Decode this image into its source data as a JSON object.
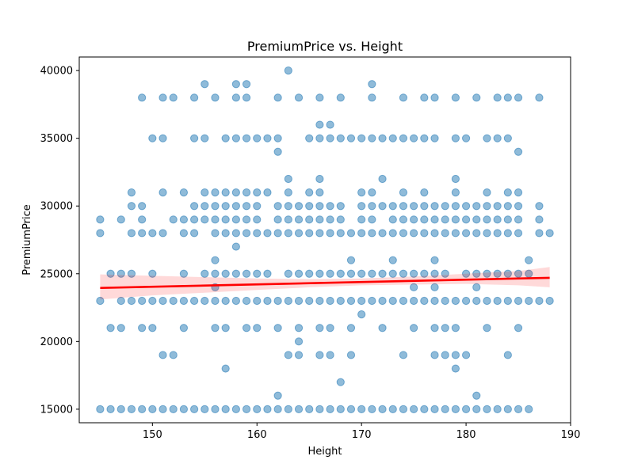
{
  "chart_data": {
    "type": "scatter",
    "title": "PremiumPrice vs. Height",
    "xlabel": "Height",
    "ylabel": "PremiumPrice",
    "xlim": [
      143,
      190
    ],
    "ylim": [
      14000,
      41000
    ],
    "xticks": [
      150,
      160,
      170,
      180,
      190
    ],
    "yticks": [
      15000,
      20000,
      25000,
      30000,
      35000,
      40000
    ],
    "grid": false,
    "point_color": "#1f77b4",
    "regression_color": "#ff0000",
    "confidence_band_color": "#ff0000",
    "regression_line": {
      "x": [
        145,
        188
      ],
      "y": [
        23950,
        24700
      ]
    },
    "confidence_band": {
      "x": [
        145,
        150,
        155,
        160,
        165,
        170,
        175,
        180,
        185,
        188
      ],
      "lower": [
        23100,
        23400,
        23600,
        23800,
        24000,
        24150,
        24200,
        24250,
        24150,
        24000
      ],
      "upper": [
        24950,
        24850,
        24750,
        24650,
        24600,
        24650,
        24800,
        25000,
        25200,
        25500
      ]
    },
    "points": [
      [
        163,
        40000
      ],
      [
        155,
        39000
      ],
      [
        158,
        39000
      ],
      [
        159,
        39000
      ],
      [
        171,
        39000
      ],
      [
        149,
        38000
      ],
      [
        151,
        38000
      ],
      [
        152,
        38000
      ],
      [
        154,
        38000
      ],
      [
        156,
        38000
      ],
      [
        158,
        38000
      ],
      [
        159,
        38000
      ],
      [
        162,
        38000
      ],
      [
        164,
        38000
      ],
      [
        166,
        38000
      ],
      [
        168,
        38000
      ],
      [
        171,
        38000
      ],
      [
        174,
        38000
      ],
      [
        176,
        38000
      ],
      [
        177,
        38000
      ],
      [
        179,
        38000
      ],
      [
        181,
        38000
      ],
      [
        183,
        38000
      ],
      [
        184,
        38000
      ],
      [
        185,
        38000
      ],
      [
        187,
        38000
      ],
      [
        166,
        36000
      ],
      [
        167,
        36000
      ],
      [
        150,
        35000
      ],
      [
        151,
        35000
      ],
      [
        154,
        35000
      ],
      [
        155,
        35000
      ],
      [
        157,
        35000
      ],
      [
        158,
        35000
      ],
      [
        159,
        35000
      ],
      [
        160,
        35000
      ],
      [
        161,
        35000
      ],
      [
        162,
        35000
      ],
      [
        165,
        35000
      ],
      [
        166,
        35000
      ],
      [
        167,
        35000
      ],
      [
        168,
        35000
      ],
      [
        169,
        35000
      ],
      [
        170,
        35000
      ],
      [
        171,
        35000
      ],
      [
        172,
        35000
      ],
      [
        173,
        35000
      ],
      [
        174,
        35000
      ],
      [
        175,
        35000
      ],
      [
        176,
        35000
      ],
      [
        177,
        35000
      ],
      [
        179,
        35000
      ],
      [
        180,
        35000
      ],
      [
        182,
        35000
      ],
      [
        183,
        35000
      ],
      [
        184,
        35000
      ],
      [
        162,
        34000
      ],
      [
        185,
        34000
      ],
      [
        163,
        32000
      ],
      [
        166,
        32000
      ],
      [
        172,
        32000
      ],
      [
        179,
        32000
      ],
      [
        148,
        31000
      ],
      [
        151,
        31000
      ],
      [
        153,
        31000
      ],
      [
        155,
        31000
      ],
      [
        156,
        31000
      ],
      [
        157,
        31000
      ],
      [
        158,
        31000
      ],
      [
        159,
        31000
      ],
      [
        160,
        31000
      ],
      [
        161,
        31000
      ],
      [
        163,
        31000
      ],
      [
        165,
        31000
      ],
      [
        166,
        31000
      ],
      [
        170,
        31000
      ],
      [
        171,
        31000
      ],
      [
        174,
        31000
      ],
      [
        176,
        31000
      ],
      [
        179,
        31000
      ],
      [
        182,
        31000
      ],
      [
        184,
        31000
      ],
      [
        185,
        31000
      ],
      [
        148,
        30000
      ],
      [
        149,
        30000
      ],
      [
        154,
        30000
      ],
      [
        155,
        30000
      ],
      [
        156,
        30000
      ],
      [
        157,
        30000
      ],
      [
        158,
        30000
      ],
      [
        159,
        30000
      ],
      [
        160,
        30000
      ],
      [
        162,
        30000
      ],
      [
        163,
        30000
      ],
      [
        164,
        30000
      ],
      [
        165,
        30000
      ],
      [
        166,
        30000
      ],
      [
        167,
        30000
      ],
      [
        168,
        30000
      ],
      [
        170,
        30000
      ],
      [
        171,
        30000
      ],
      [
        172,
        30000
      ],
      [
        173,
        30000
      ],
      [
        174,
        30000
      ],
      [
        175,
        30000
      ],
      [
        176,
        30000
      ],
      [
        177,
        30000
      ],
      [
        178,
        30000
      ],
      [
        179,
        30000
      ],
      [
        180,
        30000
      ],
      [
        181,
        30000
      ],
      [
        182,
        30000
      ],
      [
        183,
        30000
      ],
      [
        184,
        30000
      ],
      [
        185,
        30000
      ],
      [
        187,
        30000
      ],
      [
        145,
        29000
      ],
      [
        147,
        29000
      ],
      [
        149,
        29000
      ],
      [
        152,
        29000
      ],
      [
        153,
        29000
      ],
      [
        154,
        29000
      ],
      [
        155,
        29000
      ],
      [
        156,
        29000
      ],
      [
        157,
        29000
      ],
      [
        158,
        29000
      ],
      [
        159,
        29000
      ],
      [
        160,
        29000
      ],
      [
        162,
        29000
      ],
      [
        163,
        29000
      ],
      [
        164,
        29000
      ],
      [
        165,
        29000
      ],
      [
        166,
        29000
      ],
      [
        167,
        29000
      ],
      [
        168,
        29000
      ],
      [
        170,
        29000
      ],
      [
        171,
        29000
      ],
      [
        173,
        29000
      ],
      [
        174,
        29000
      ],
      [
        175,
        29000
      ],
      [
        176,
        29000
      ],
      [
        177,
        29000
      ],
      [
        178,
        29000
      ],
      [
        179,
        29000
      ],
      [
        180,
        29000
      ],
      [
        181,
        29000
      ],
      [
        182,
        29000
      ],
      [
        183,
        29000
      ],
      [
        184,
        29000
      ],
      [
        185,
        29000
      ],
      [
        187,
        29000
      ],
      [
        145,
        28000
      ],
      [
        148,
        28000
      ],
      [
        149,
        28000
      ],
      [
        150,
        28000
      ],
      [
        151,
        28000
      ],
      [
        153,
        28000
      ],
      [
        154,
        28000
      ],
      [
        156,
        28000
      ],
      [
        157,
        28000
      ],
      [
        158,
        28000
      ],
      [
        159,
        28000
      ],
      [
        160,
        28000
      ],
      [
        161,
        28000
      ],
      [
        162,
        28000
      ],
      [
        163,
        28000
      ],
      [
        164,
        28000
      ],
      [
        165,
        28000
      ],
      [
        166,
        28000
      ],
      [
        167,
        28000
      ],
      [
        168,
        28000
      ],
      [
        169,
        28000
      ],
      [
        170,
        28000
      ],
      [
        171,
        28000
      ],
      [
        172,
        28000
      ],
      [
        173,
        28000
      ],
      [
        174,
        28000
      ],
      [
        175,
        28000
      ],
      [
        176,
        28000
      ],
      [
        177,
        28000
      ],
      [
        178,
        28000
      ],
      [
        179,
        28000
      ],
      [
        180,
        28000
      ],
      [
        181,
        28000
      ],
      [
        182,
        28000
      ],
      [
        183,
        28000
      ],
      [
        184,
        28000
      ],
      [
        185,
        28000
      ],
      [
        187,
        28000
      ],
      [
        188,
        28000
      ],
      [
        158,
        27000
      ],
      [
        156,
        26000
      ],
      [
        169,
        26000
      ],
      [
        173,
        26000
      ],
      [
        177,
        26000
      ],
      [
        186,
        26000
      ],
      [
        146,
        25000
      ],
      [
        147,
        25000
      ],
      [
        148,
        25000
      ],
      [
        150,
        25000
      ],
      [
        153,
        25000
      ],
      [
        155,
        25000
      ],
      [
        156,
        25000
      ],
      [
        157,
        25000
      ],
      [
        158,
        25000
      ],
      [
        159,
        25000
      ],
      [
        160,
        25000
      ],
      [
        161,
        25000
      ],
      [
        163,
        25000
      ],
      [
        164,
        25000
      ],
      [
        165,
        25000
      ],
      [
        166,
        25000
      ],
      [
        167,
        25000
      ],
      [
        168,
        25000
      ],
      [
        169,
        25000
      ],
      [
        170,
        25000
      ],
      [
        171,
        25000
      ],
      [
        172,
        25000
      ],
      [
        173,
        25000
      ],
      [
        174,
        25000
      ],
      [
        175,
        25000
      ],
      [
        176,
        25000
      ],
      [
        177,
        25000
      ],
      [
        178,
        25000
      ],
      [
        180,
        25000
      ],
      [
        181,
        25000
      ],
      [
        182,
        25000
      ],
      [
        183,
        25000
      ],
      [
        184,
        25000
      ],
      [
        185,
        25000
      ],
      [
        186,
        25000
      ],
      [
        156,
        24000
      ],
      [
        175,
        24000
      ],
      [
        177,
        24000
      ],
      [
        181,
        24000
      ],
      [
        145,
        23000
      ],
      [
        147,
        23000
      ],
      [
        148,
        23000
      ],
      [
        149,
        23000
      ],
      [
        150,
        23000
      ],
      [
        151,
        23000
      ],
      [
        152,
        23000
      ],
      [
        153,
        23000
      ],
      [
        154,
        23000
      ],
      [
        155,
        23000
      ],
      [
        156,
        23000
      ],
      [
        157,
        23000
      ],
      [
        158,
        23000
      ],
      [
        159,
        23000
      ],
      [
        160,
        23000
      ],
      [
        161,
        23000
      ],
      [
        162,
        23000
      ],
      [
        163,
        23000
      ],
      [
        164,
        23000
      ],
      [
        165,
        23000
      ],
      [
        166,
        23000
      ],
      [
        167,
        23000
      ],
      [
        168,
        23000
      ],
      [
        169,
        23000
      ],
      [
        170,
        23000
      ],
      [
        171,
        23000
      ],
      [
        172,
        23000
      ],
      [
        173,
        23000
      ],
      [
        174,
        23000
      ],
      [
        175,
        23000
      ],
      [
        176,
        23000
      ],
      [
        177,
        23000
      ],
      [
        178,
        23000
      ],
      [
        179,
        23000
      ],
      [
        180,
        23000
      ],
      [
        181,
        23000
      ],
      [
        182,
        23000
      ],
      [
        183,
        23000
      ],
      [
        184,
        23000
      ],
      [
        185,
        23000
      ],
      [
        186,
        23000
      ],
      [
        187,
        23000
      ],
      [
        188,
        23000
      ],
      [
        170,
        22000
      ],
      [
        146,
        21000
      ],
      [
        147,
        21000
      ],
      [
        149,
        21000
      ],
      [
        150,
        21000
      ],
      [
        153,
        21000
      ],
      [
        156,
        21000
      ],
      [
        157,
        21000
      ],
      [
        159,
        21000
      ],
      [
        160,
        21000
      ],
      [
        162,
        21000
      ],
      [
        164,
        21000
      ],
      [
        166,
        21000
      ],
      [
        167,
        21000
      ],
      [
        169,
        21000
      ],
      [
        172,
        21000
      ],
      [
        175,
        21000
      ],
      [
        177,
        21000
      ],
      [
        178,
        21000
      ],
      [
        179,
        21000
      ],
      [
        182,
        21000
      ],
      [
        185,
        21000
      ],
      [
        164,
        20000
      ],
      [
        151,
        19000
      ],
      [
        152,
        19000
      ],
      [
        163,
        19000
      ],
      [
        164,
        19000
      ],
      [
        166,
        19000
      ],
      [
        167,
        19000
      ],
      [
        169,
        19000
      ],
      [
        174,
        19000
      ],
      [
        177,
        19000
      ],
      [
        178,
        19000
      ],
      [
        179,
        19000
      ],
      [
        180,
        19000
      ],
      [
        184,
        19000
      ],
      [
        157,
        18000
      ],
      [
        179,
        18000
      ],
      [
        168,
        17000
      ],
      [
        162,
        16000
      ],
      [
        181,
        16000
      ],
      [
        145,
        15000
      ],
      [
        146,
        15000
      ],
      [
        147,
        15000
      ],
      [
        148,
        15000
      ],
      [
        149,
        15000
      ],
      [
        150,
        15000
      ],
      [
        151,
        15000
      ],
      [
        152,
        15000
      ],
      [
        153,
        15000
      ],
      [
        154,
        15000
      ],
      [
        155,
        15000
      ],
      [
        156,
        15000
      ],
      [
        157,
        15000
      ],
      [
        158,
        15000
      ],
      [
        159,
        15000
      ],
      [
        160,
        15000
      ],
      [
        161,
        15000
      ],
      [
        162,
        15000
      ],
      [
        163,
        15000
      ],
      [
        164,
        15000
      ],
      [
        165,
        15000
      ],
      [
        166,
        15000
      ],
      [
        167,
        15000
      ],
      [
        168,
        15000
      ],
      [
        169,
        15000
      ],
      [
        170,
        15000
      ],
      [
        171,
        15000
      ],
      [
        172,
        15000
      ],
      [
        173,
        15000
      ],
      [
        174,
        15000
      ],
      [
        175,
        15000
      ],
      [
        176,
        15000
      ],
      [
        177,
        15000
      ],
      [
        178,
        15000
      ],
      [
        179,
        15000
      ],
      [
        180,
        15000
      ],
      [
        181,
        15000
      ],
      [
        182,
        15000
      ],
      [
        183,
        15000
      ],
      [
        184,
        15000
      ],
      [
        185,
        15000
      ],
      [
        186,
        15000
      ]
    ]
  }
}
